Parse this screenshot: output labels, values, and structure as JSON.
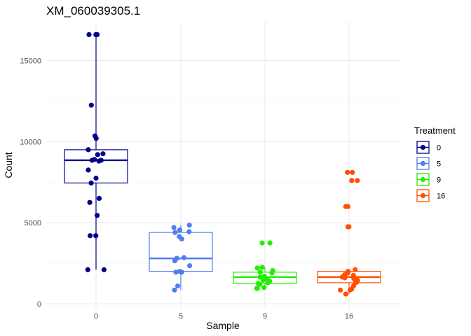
{
  "chart_data": {
    "type": "box",
    "title": "XM_060039305.1",
    "xlabel": "Sample",
    "ylabel": "Count",
    "categories": [
      "0",
      "5",
      "9",
      "16"
    ],
    "y_ticks": [
      0,
      5000,
      10000,
      15000
    ],
    "grid": true,
    "legend": {
      "title": "Treatment",
      "placement": "right",
      "entries": [
        {
          "label": "0",
          "color": "#00008B"
        },
        {
          "label": "5",
          "color": "#4F7FEF"
        },
        {
          "label": "9",
          "color": "#22EE00"
        },
        {
          "label": "16",
          "color": "#FF4F00"
        }
      ]
    },
    "series": [
      {
        "category": "0",
        "color": "#00008B",
        "box": {
          "q1": 7450,
          "median": 8850,
          "q3": 9500,
          "whisker_low": 2100,
          "whisker_high": 16600
        },
        "points": [
          16600,
          16600,
          16600,
          12250,
          10350,
          10200,
          9500,
          9250,
          9200,
          8900,
          8850,
          8850,
          8800,
          8250,
          7750,
          7450,
          6500,
          6250,
          5450,
          4200,
          4200,
          2100,
          2100
        ]
      },
      {
        "category": "5",
        "color": "#4F7FEF",
        "box": {
          "q1": 2000,
          "median": 2800,
          "q3": 4400,
          "whisker_low": 850,
          "whisker_high": 4850
        },
        "points": [
          4850,
          4700,
          4550,
          4450,
          4400,
          4150,
          4000,
          2850,
          2800,
          2650,
          2350,
          2000,
          1950,
          1950,
          1100,
          850
        ]
      },
      {
        "category": "9",
        "color": "#22EE00",
        "box": {
          "q1": 1250,
          "median": 1650,
          "q3": 1950,
          "whisker_low": 950,
          "whisker_high": 2250
        },
        "points": [
          3750,
          3750,
          2250,
          2200,
          2050,
          1950,
          1900,
          1700,
          1650,
          1550,
          1450,
          1400,
          1300,
          1250,
          1200,
          1000,
          950,
          950
        ]
      },
      {
        "category": "16",
        "color": "#FF4F00",
        "box": {
          "q1": 1300,
          "median": 1650,
          "q3": 2000,
          "whisker_low": 600,
          "whisker_high": 2100
        },
        "points": [
          8100,
          8100,
          7600,
          7600,
          6000,
          6000,
          4750,
          4750,
          2100,
          2000,
          1900,
          1800,
          1750,
          1750,
          1650,
          1600,
          1550,
          1500,
          1450,
          1350,
          1300,
          1100,
          900,
          850,
          850,
          600
        ]
      }
    ]
  }
}
